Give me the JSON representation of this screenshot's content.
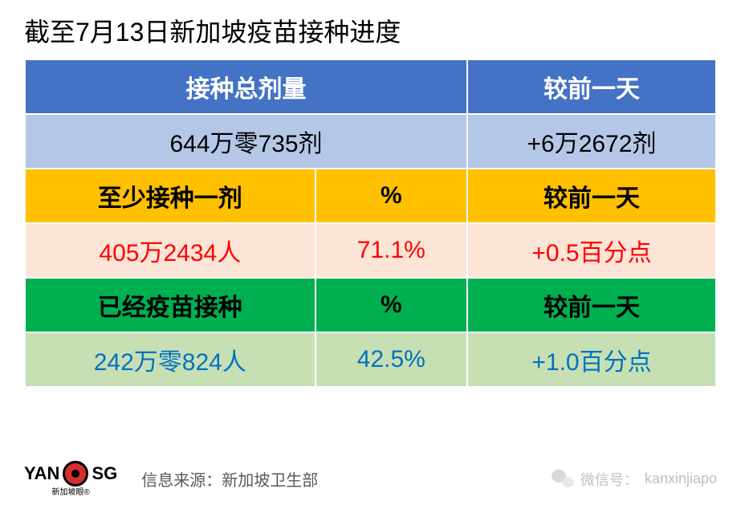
{
  "title": "截至7月13日新加坡疫苗接种进度",
  "row1": {
    "total_doses_label": "接种总剂量",
    "vs_prev_label": "较前一天"
  },
  "row2": {
    "total_doses_value": "644万零735剂",
    "vs_prev_value": "+6万2672剂"
  },
  "row3": {
    "at_least_one_label": "至少接种一剂",
    "percent_label": "%",
    "vs_prev_label": "较前一天"
  },
  "row4": {
    "people_value": "405万2434人",
    "percent_value": "71.1%",
    "vs_prev_value": "+0.5百分点"
  },
  "row5": {
    "fully_vaccinated_label": "已经疫苗接种",
    "percent_label": "%",
    "vs_prev_label": "较前一天"
  },
  "row6": {
    "people_value": "242万零824人",
    "percent_value": "42.5%",
    "vs_prev_value": "+1.0百分点"
  },
  "footer": {
    "logo_left": "YAN",
    "logo_right": "SG",
    "logo_sub": "新加坡眼®",
    "source_label": "信息来源：",
    "source_value": "新加坡卫生部",
    "wechat_label": "微信号：",
    "wechat_value": "kanxinjiapo"
  },
  "colors": {
    "header_blue": "#4472c4",
    "light_blue": "#b4c7e7",
    "orange": "#ffc000",
    "peach": "#fce4d6",
    "green": "#00b050",
    "light_green": "#c6e0b4",
    "text_red": "#ff0000",
    "text_blue": "#0070c0"
  }
}
